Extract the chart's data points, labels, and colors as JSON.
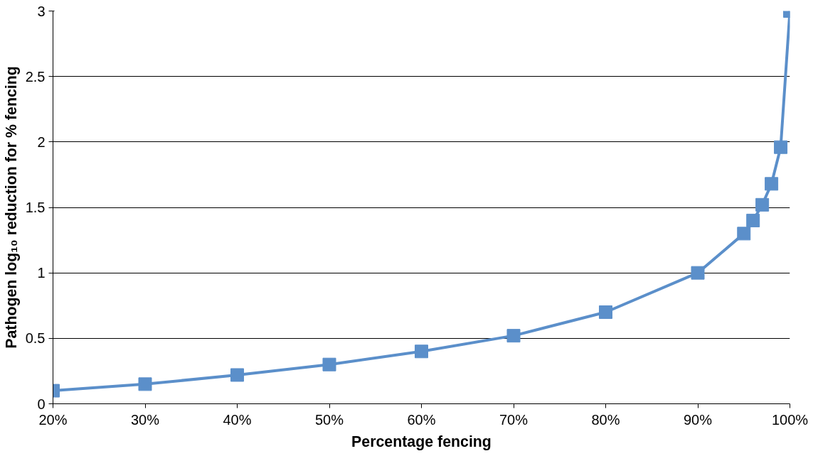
{
  "chart_data": {
    "type": "line",
    "xlabel": "Percentage fencing",
    "ylabel": "Pathogen log₁₀ reduction for % fencing",
    "x": [
      20,
      30,
      40,
      50,
      60,
      70,
      80,
      90,
      95,
      96,
      97,
      98,
      99,
      100
    ],
    "series": [
      {
        "color": "#5b8fca",
        "values": [
          0.1,
          0.15,
          0.22,
          0.3,
          0.4,
          0.52,
          0.7,
          1.0,
          1.3,
          1.4,
          1.52,
          1.68,
          1.96,
          3.0
        ]
      }
    ],
    "xlim": [
      20,
      100
    ],
    "xticks": [
      {
        "value": 20,
        "label": "20%"
      },
      {
        "value": 30,
        "label": "30%"
      },
      {
        "value": 40,
        "label": "40%"
      },
      {
        "value": 50,
        "label": "50%"
      },
      {
        "value": 60,
        "label": "60%"
      },
      {
        "value": 70,
        "label": "70%"
      },
      {
        "value": 80,
        "label": "80%"
      },
      {
        "value": 90,
        "label": "90%"
      },
      {
        "value": 100,
        "label": "100%"
      }
    ],
    "ylim": [
      0,
      3
    ],
    "yticks": [
      0,
      0.5,
      1,
      1.5,
      2,
      2.5,
      3
    ],
    "grid": "y",
    "marker": "square",
    "line_style": "solid"
  }
}
